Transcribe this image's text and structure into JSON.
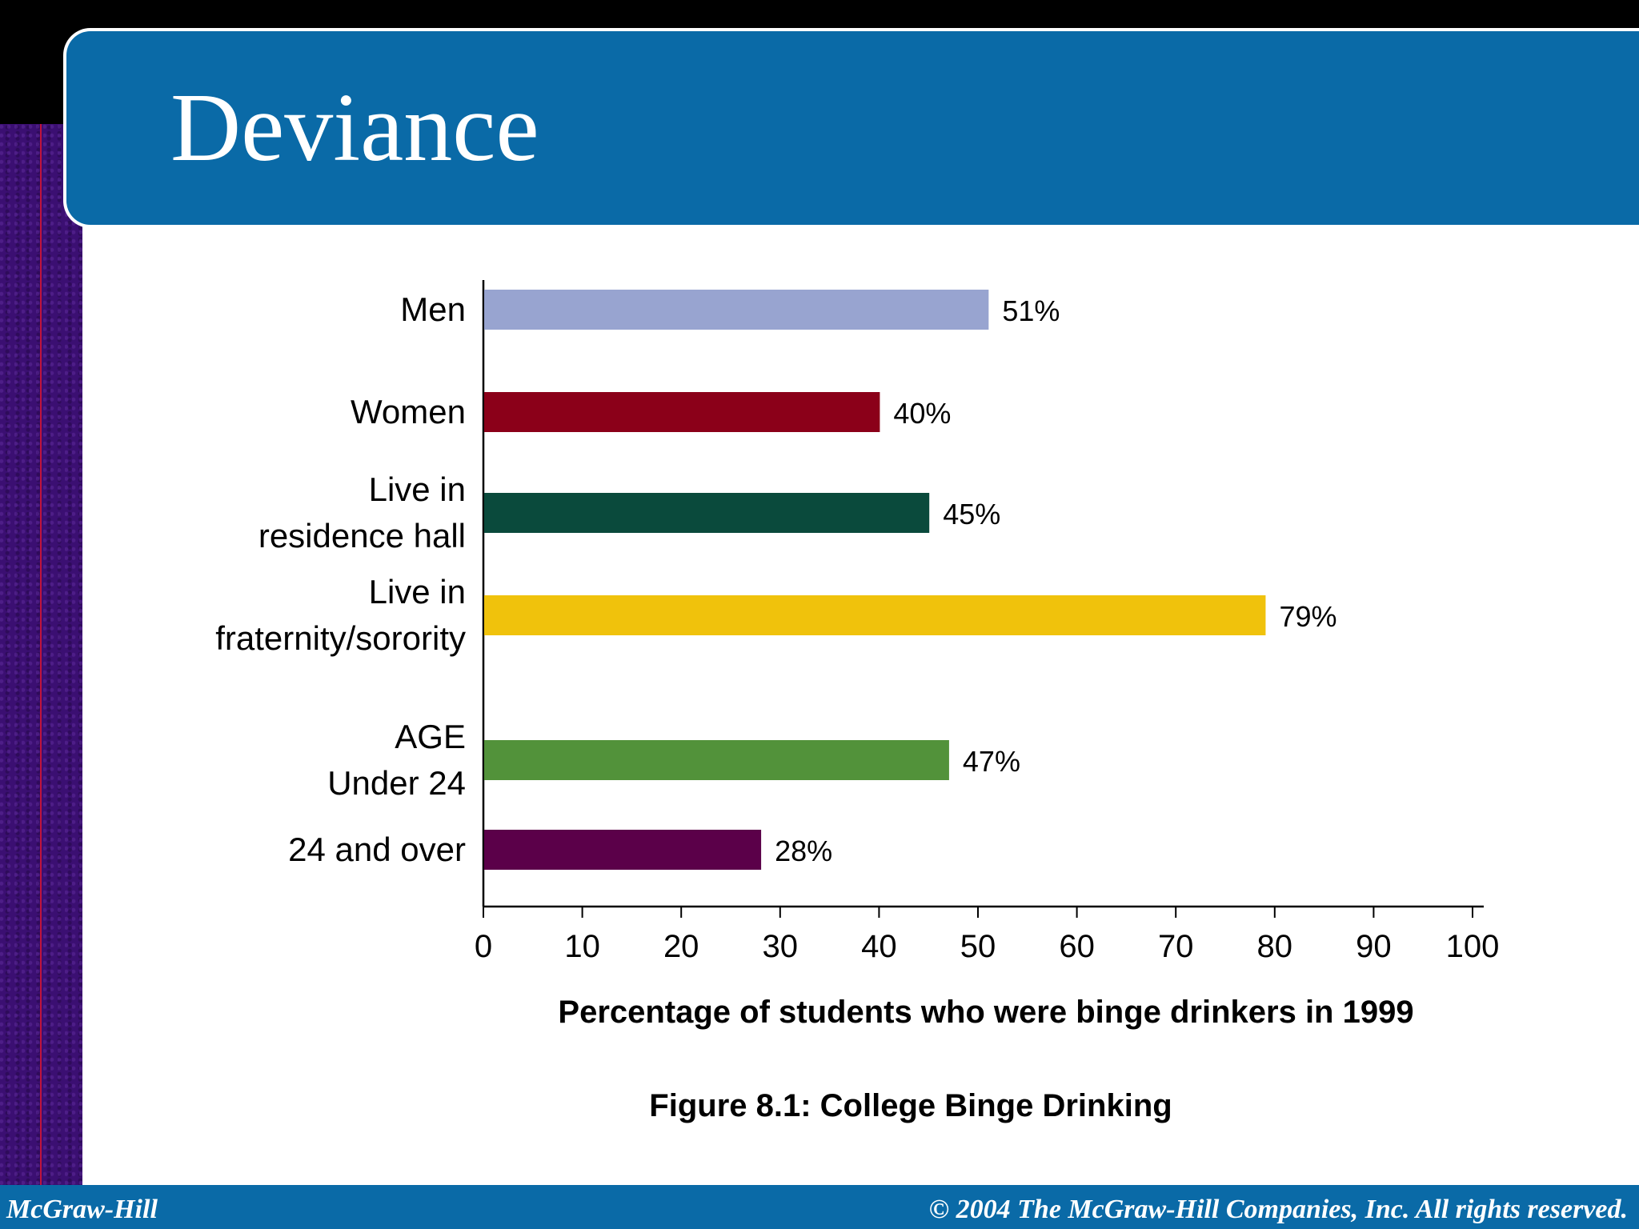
{
  "slide": {
    "title": "Deviance"
  },
  "chart_data": {
    "type": "bar",
    "orientation": "horizontal",
    "categories": [
      [
        "Men"
      ],
      [
        "Women"
      ],
      [
        "Live in",
        "residence hall"
      ],
      [
        "Live in",
        "fraternity/sorority"
      ],
      [
        "AGE",
        "Under 24"
      ],
      [
        "24 and over"
      ]
    ],
    "values": [
      51,
      40,
      45,
      79,
      47,
      28
    ],
    "value_labels": [
      "51%",
      "40%",
      "45%",
      "79%",
      "47%",
      "28%"
    ],
    "colors": [
      "#98a4d0",
      "#8b0019",
      "#0a4a3c",
      "#f0c20c",
      "#52923a",
      "#5b0049"
    ],
    "xlabel": "Percentage of students who were binge drinkers in 1999",
    "xlim": [
      0,
      100
    ],
    "xticks": [
      0,
      10,
      20,
      30,
      40,
      50,
      60,
      70,
      80,
      90,
      100
    ],
    "grid": false
  },
  "caption": "Figure 8.1: College Binge Drinking",
  "footer": {
    "left": "McGraw-Hill",
    "right": "© 2004 The McGraw-Hill Companies, Inc. All rights reserved."
  }
}
